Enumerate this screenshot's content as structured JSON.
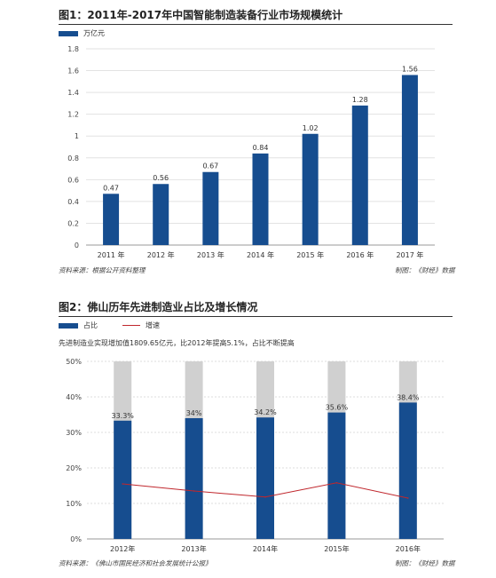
{
  "chart_data": [
    {
      "type": "bar",
      "title": "图1：2011年-2017年中国智能制造装备行业市场规模统计",
      "legend": "万亿元",
      "categories": [
        "2011 年",
        "2012 年",
        "2013 年",
        "2014 年",
        "2015 年",
        "2016 年",
        "2017 年"
      ],
      "values": [
        0.47,
        0.56,
        0.67,
        0.84,
        1.02,
        1.28,
        1.56
      ],
      "data_labels": [
        "0.47",
        "0.56",
        "0.67",
        "0.84",
        "1.02",
        "1.28",
        "1.56"
      ],
      "yticks": [
        "0",
        "0.2",
        "0.4",
        "0.6",
        "0.8",
        "1",
        "1.2",
        "1.4",
        "1.6",
        "1.8"
      ],
      "ylim": [
        0,
        1.8
      ],
      "bar_color": "#164d8f",
      "grid": true,
      "source_left": "资料来源：根据公开资料整理",
      "source_right": "制图：《财经》数据"
    },
    {
      "type": "bar",
      "title": "图2：佛山历年先进制造业占比及增长情况",
      "legend": [
        "占比",
        "增速"
      ],
      "note": "先进制造业实现增加值1809.65亿元，比2012年提高5.1%，占比不断提高",
      "categories": [
        "2012年",
        "2013年",
        "2014年",
        "2015年",
        "2016年"
      ],
      "series": [
        {
          "name": "占比",
          "type": "bar",
          "values": [
            33.3,
            34,
            34.2,
            35.6,
            38.4
          ],
          "labels": [
            "33.3%",
            "34%",
            "34.2%",
            "35.6%",
            "38.4%"
          ],
          "color": "#164d8f"
        },
        {
          "name": "增速",
          "type": "line",
          "values": [
            15.5,
            13.5,
            11.8,
            15.8,
            11.5
          ],
          "color": "#c0272d"
        }
      ],
      "background_bar_value": 50,
      "background_bar_color": "#d0d0d0",
      "yticks": [
        "0%",
        "10%",
        "20%",
        "30%",
        "40%",
        "50%"
      ],
      "ylim": [
        0,
        50
      ],
      "grid": true,
      "source_left": "资料来源：《佛山市国民经济和社会发展统计公报》",
      "source_right": "制图：《财经》数据"
    }
  ]
}
